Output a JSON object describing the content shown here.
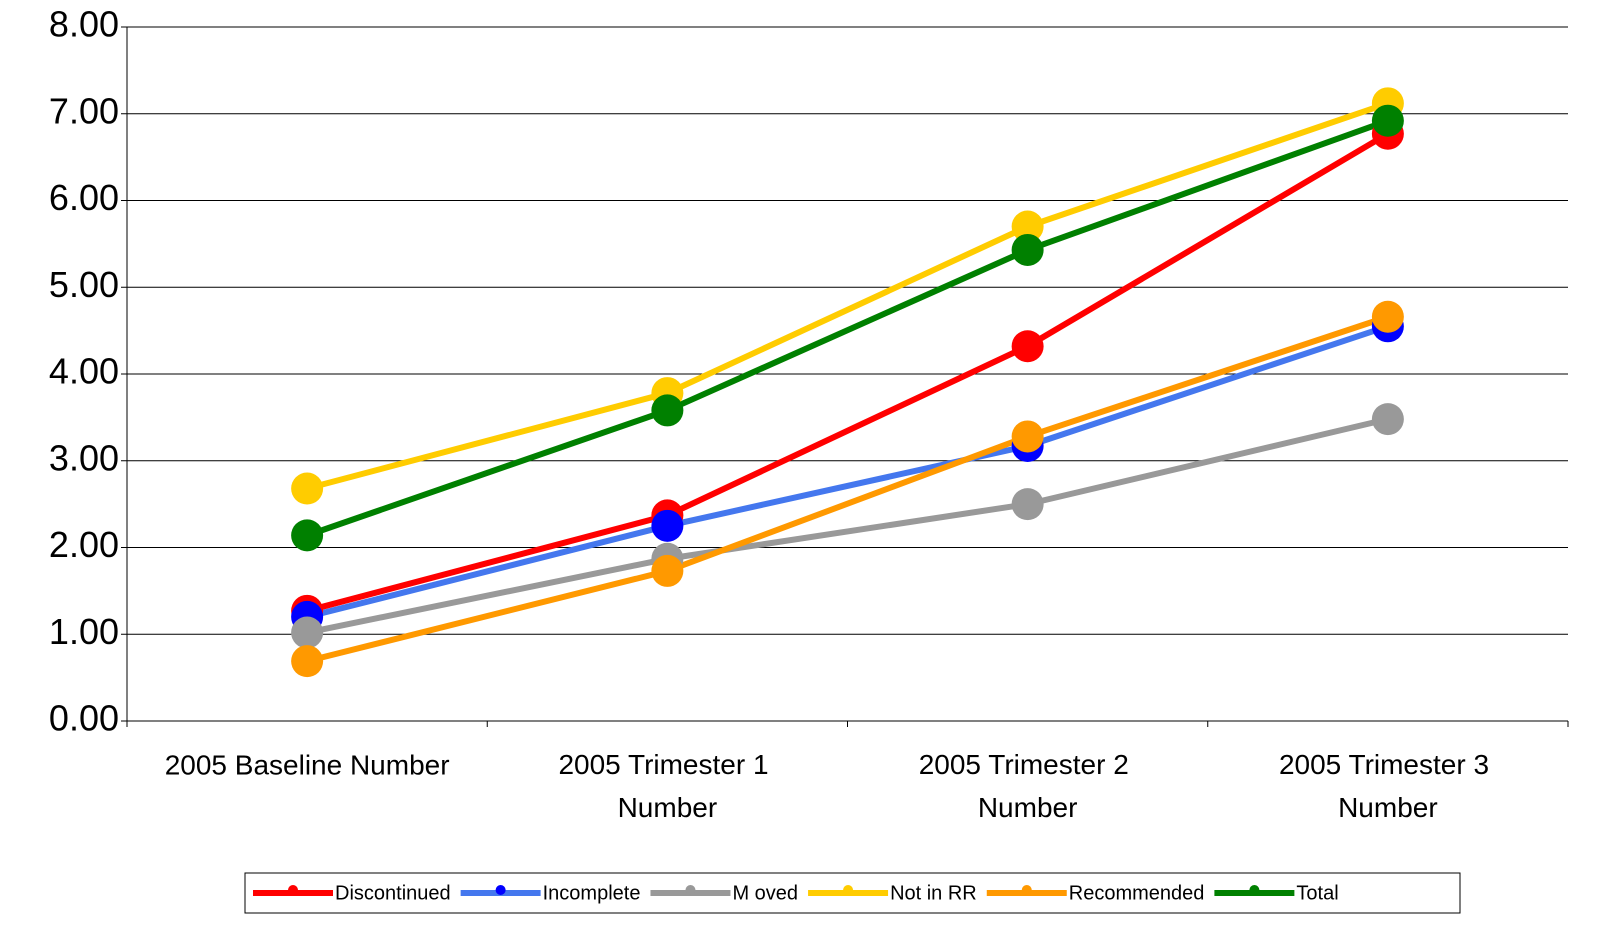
{
  "chart_data": {
    "type": "line",
    "categories": [
      "2005 Baseline Number",
      "2005 Trimester 1 Number",
      "2005 Trimester 2 Number",
      "2005 Trimester 3 Number"
    ],
    "series": [
      {
        "name": "Discontinued",
        "color": "#ff0000",
        "marker_color": "#ff0000",
        "values": [
          1.27,
          2.37,
          4.32,
          6.77
        ]
      },
      {
        "name": "Incomplete",
        "color": "#4477ee",
        "marker_color": "#0000ff",
        "values": [
          1.2,
          2.25,
          3.17,
          4.55
        ]
      },
      {
        "name": "M oved",
        "color": "#999999",
        "marker_color": "#999999",
        "values": [
          1.02,
          1.87,
          2.5,
          3.48
        ]
      },
      {
        "name": "Not in RR",
        "color": "#ffcc00",
        "marker_color": "#ffcc00",
        "values": [
          2.68,
          3.78,
          5.7,
          7.12
        ]
      },
      {
        "name": "Recommended",
        "color": "#ff9900",
        "marker_color": "#ff9900",
        "values": [
          0.69,
          1.73,
          3.28,
          4.66
        ]
      },
      {
        "name": "Total",
        "color": "#008000",
        "marker_color": "#008000",
        "values": [
          2.14,
          3.58,
          5.43,
          6.92
        ]
      }
    ],
    "ylim": [
      0,
      8
    ],
    "yticks": [
      {
        "value": 0,
        "label": "0.00"
      },
      {
        "value": 1,
        "label": "1.00"
      },
      {
        "value": 2,
        "label": "2.00"
      },
      {
        "value": 3,
        "label": "3.00"
      },
      {
        "value": 4,
        "label": "4.00"
      },
      {
        "value": 5,
        "label": "5.00"
      },
      {
        "value": 6,
        "label": "6.00"
      },
      {
        "value": 7,
        "label": "7.00"
      },
      {
        "value": 8,
        "label": "8.00"
      }
    ],
    "grid": true,
    "legend": "bottom"
  }
}
